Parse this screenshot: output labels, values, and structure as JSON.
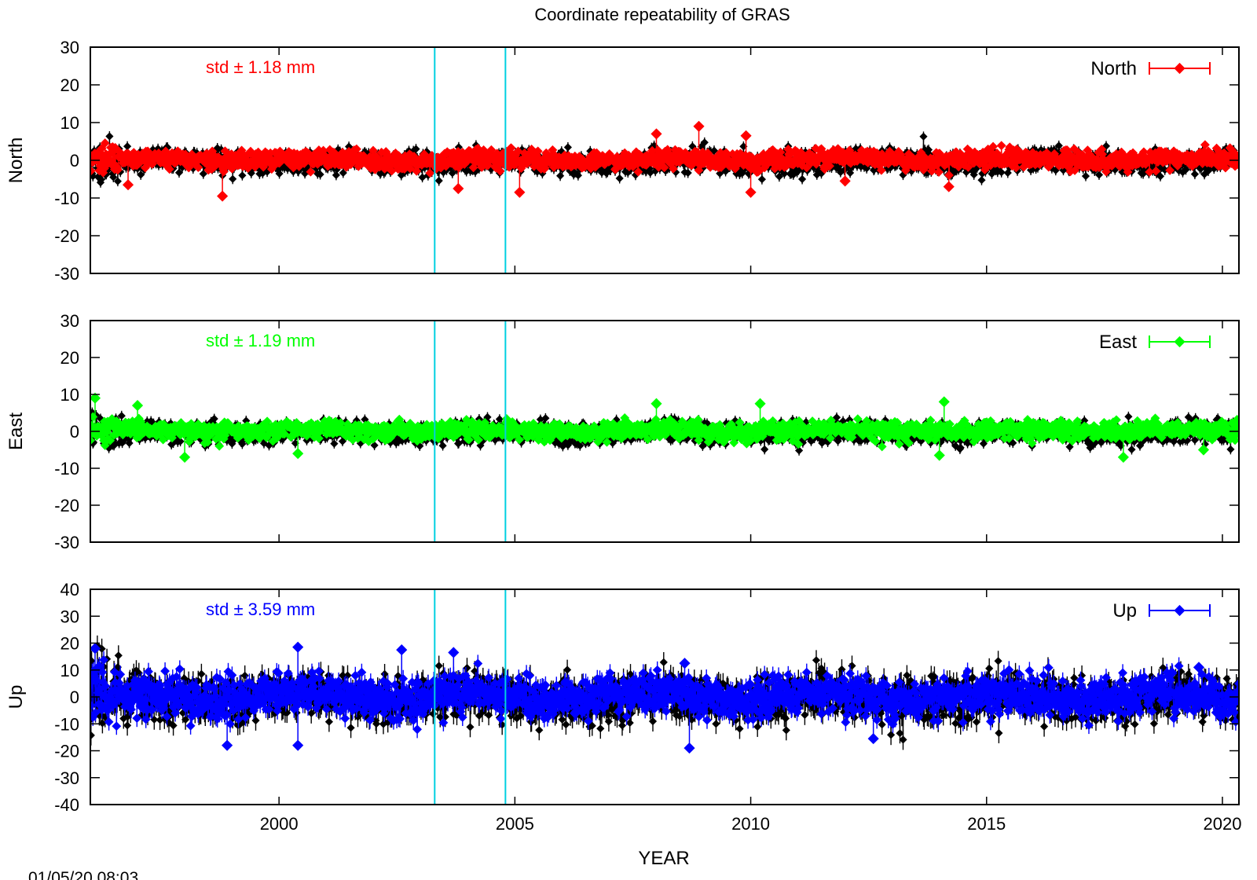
{
  "title": "Coordinate repeatability of GRAS",
  "xlabel": "YEAR",
  "timestamp": "01/05/20 08:03",
  "reference_line_color": "#00d0e0",
  "chart_data": [
    {
      "type": "scatter",
      "title": "Coordinate repeatability of GRAS",
      "ylabel": "North",
      "xlabel": "YEAR",
      "xlim": [
        1996.0,
        2020.35
      ],
      "ylim": [
        -30,
        30
      ],
      "yticks": [
        30,
        20,
        10,
        0,
        -10,
        -20,
        -30
      ],
      "xticks": [
        2000,
        2005,
        2010,
        2015,
        2020
      ],
      "reference_lines_x": [
        2003.3,
        2004.8
      ],
      "annotation": "std ± 1.18 mm",
      "annotation_color": "#ff0000",
      "grid": false,
      "legend": "top-right",
      "series": [
        {
          "name": "North",
          "color": "#ff0000",
          "spread": 1.18
        },
        {
          "color": "#000000",
          "spread": 1.5
        }
      ],
      "outliers": [
        {
          "x": 1996.8,
          "y": -6.5
        },
        {
          "x": 1998.8,
          "y": -9.5
        },
        {
          "x": 2003.8,
          "y": -7.5
        },
        {
          "x": 2005.1,
          "y": -8.5
        },
        {
          "x": 2008.0,
          "y": 7.0
        },
        {
          "x": 2008.9,
          "y": 9.0
        },
        {
          "x": 2009.9,
          "y": 6.5
        },
        {
          "x": 2010.0,
          "y": -8.5
        },
        {
          "x": 2012.0,
          "y": -5.5
        },
        {
          "x": 2014.2,
          "y": -7.0
        }
      ]
    },
    {
      "type": "scatter",
      "ylabel": "East",
      "xlabel": "YEAR",
      "xlim": [
        1996.0,
        2020.35
      ],
      "ylim": [
        -30,
        30
      ],
      "yticks": [
        30,
        20,
        10,
        0,
        -10,
        -20,
        -30
      ],
      "xticks": [
        2000,
        2005,
        2010,
        2015,
        2020
      ],
      "reference_lines_x": [
        2003.3,
        2004.8
      ],
      "annotation": "std ± 1.19 mm",
      "annotation_color": "#00ff00",
      "grid": false,
      "legend": "top-right",
      "series": [
        {
          "name": "East",
          "color": "#00ff00",
          "spread": 1.19
        },
        {
          "color": "#000000",
          "spread": 1.5
        }
      ],
      "outliers": [
        {
          "x": 1996.1,
          "y": 9.0
        },
        {
          "x": 1997.0,
          "y": 7.0
        },
        {
          "x": 1998.0,
          "y": -7.0
        },
        {
          "x": 2000.4,
          "y": -6.0
        },
        {
          "x": 2008.0,
          "y": 7.5
        },
        {
          "x": 2010.2,
          "y": 7.5
        },
        {
          "x": 2014.1,
          "y": 8.0
        },
        {
          "x": 2014.0,
          "y": -6.5
        },
        {
          "x": 2017.9,
          "y": -7.0
        },
        {
          "x": 2019.6,
          "y": -5.0
        }
      ]
    },
    {
      "type": "scatter",
      "ylabel": "Up",
      "xlabel": "YEAR",
      "xlim": [
        1996.0,
        2020.35
      ],
      "ylim": [
        -40,
        40
      ],
      "yticks": [
        40,
        30,
        20,
        10,
        0,
        -10,
        -20,
        -30,
        -40
      ],
      "xticks": [
        2000,
        2005,
        2010,
        2015,
        2020
      ],
      "xtick_labels": [
        "2000",
        "2005",
        "2010",
        "2015",
        "2020"
      ],
      "reference_lines_x": [
        2003.3,
        2004.8
      ],
      "annotation": "std ± 3.59 mm",
      "annotation_color": "#0000ff",
      "grid": false,
      "legend": "top-right",
      "series": [
        {
          "name": "Up",
          "color": "#0000ff",
          "spread": 3.59
        },
        {
          "color": "#000000",
          "spread": 4.2
        }
      ],
      "outliers": [
        {
          "x": 1996.1,
          "y": 18.0
        },
        {
          "x": 1998.9,
          "y": -18.0
        },
        {
          "x": 2000.4,
          "y": 18.5
        },
        {
          "x": 2000.4,
          "y": -18.0
        },
        {
          "x": 2002.6,
          "y": 17.5
        },
        {
          "x": 2003.7,
          "y": 16.5
        },
        {
          "x": 2008.7,
          "y": -19.0
        },
        {
          "x": 2008.6,
          "y": 12.5
        },
        {
          "x": 2012.6,
          "y": -15.5
        },
        {
          "x": 2019.5,
          "y": 11.0
        }
      ]
    }
  ]
}
